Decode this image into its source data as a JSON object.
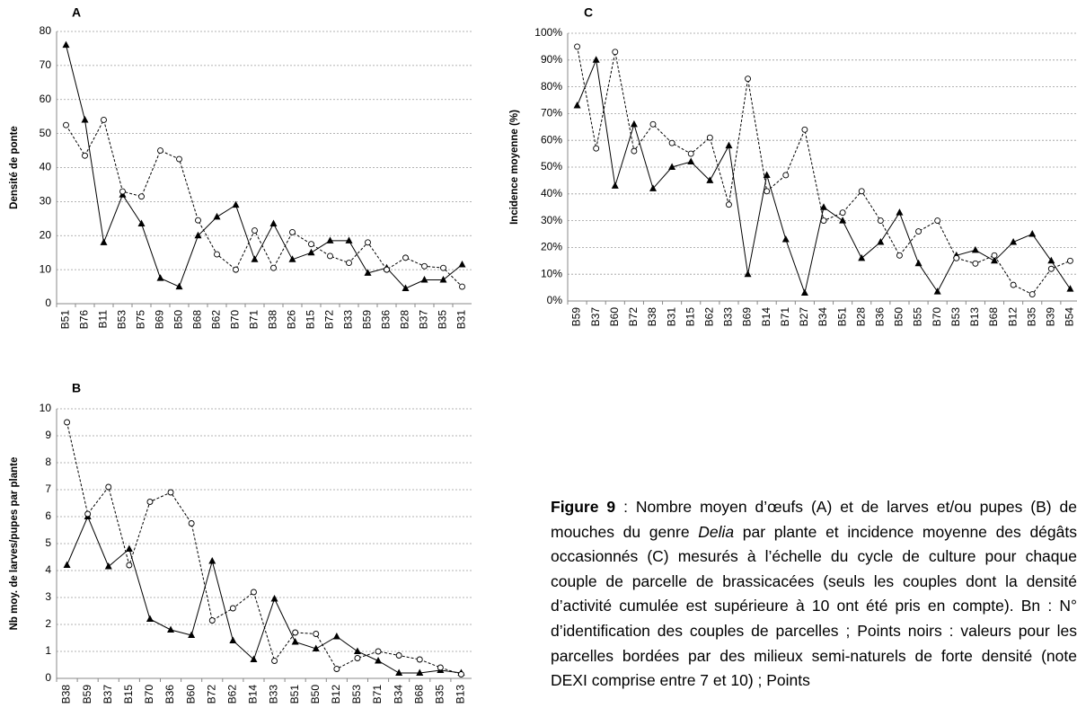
{
  "chart_data": [
    {
      "type": "line",
      "panel": "A",
      "ylabel": "Densité de ponte",
      "categories": [
        "B51",
        "B76",
        "B11",
        "B53",
        "B75",
        "B69",
        "B50",
        "B68",
        "B62",
        "B70",
        "B71",
        "B38",
        "B26",
        "B15",
        "B72",
        "B33",
        "B59",
        "B36",
        "B28",
        "B37",
        "B35",
        "B31"
      ],
      "series": [
        {
          "color": "#000000",
          "marker": "triangle",
          "dashed": false,
          "values": [
            76,
            54,
            18,
            32,
            23.5,
            7.5,
            5,
            20,
            25.5,
            29,
            13,
            23.5,
            13,
            15,
            18.5,
            18.5,
            9,
            10.5,
            4.5,
            7,
            7,
            11.5
          ]
        },
        {
          "color": "#000000",
          "marker": "circle",
          "dashed": true,
          "values": [
            52.5,
            43.5,
            54,
            33,
            31.5,
            45,
            42.5,
            24.5,
            14.5,
            10,
            21.5,
            10.5,
            21,
            17.5,
            14,
            12,
            18,
            10,
            13.5,
            11,
            10.5,
            5
          ]
        }
      ],
      "ylim": [
        0,
        80
      ],
      "yticks": [
        0,
        10,
        20,
        30,
        40,
        50,
        60,
        70,
        80
      ],
      "grid": true
    },
    {
      "type": "line",
      "panel": "C",
      "ylabel": "Incidence moyenne (%)",
      "categories": [
        "B59",
        "B37",
        "B60",
        "B72",
        "B38",
        "B31",
        "B15",
        "B62",
        "B33",
        "B69",
        "B14",
        "B71",
        "B27",
        "B34",
        "B51",
        "B28",
        "B36",
        "B50",
        "B55",
        "B70",
        "B53",
        "B13",
        "B68",
        "B12",
        "B35",
        "B39",
        "B54"
      ],
      "series": [
        {
          "color": "#000000",
          "marker": "triangle",
          "dashed": false,
          "values": [
            73,
            90,
            43,
            66,
            42,
            50,
            52,
            45,
            58,
            10,
            47,
            23,
            3,
            35,
            30,
            16,
            22,
            33,
            14,
            3.5,
            17,
            19,
            15,
            22,
            25,
            15,
            4.5
          ]
        },
        {
          "color": "#000000",
          "marker": "circle",
          "dashed": true,
          "values": [
            95,
            57,
            93,
            56,
            66,
            59,
            55,
            61,
            36,
            83,
            41,
            47,
            64,
            30,
            33,
            41,
            30,
            17,
            26,
            30,
            16,
            14,
            17,
            6,
            2.5,
            12,
            15
          ]
        }
      ],
      "ylim": [
        0,
        100
      ],
      "yticks": [
        {
          "value": 0,
          "label": "0%"
        },
        {
          "value": 10,
          "label": "10%"
        },
        {
          "value": 20,
          "label": "20%"
        },
        {
          "value": 30,
          "label": "30%"
        },
        {
          "value": 40,
          "label": "40%"
        },
        {
          "value": 50,
          "label": "50%"
        },
        {
          "value": 60,
          "label": "60%"
        },
        {
          "value": 70,
          "label": "70%"
        },
        {
          "value": 80,
          "label": "80%"
        },
        {
          "value": 90,
          "label": "90%"
        },
        {
          "value": 100,
          "label": "100%"
        }
      ],
      "grid": true
    },
    {
      "type": "line",
      "panel": "B",
      "ylabel": "Nb moy. de larves/pupes par plante",
      "categories": [
        "B38",
        "B59",
        "B37",
        "B15",
        "B70",
        "B36",
        "B60",
        "B72",
        "B62",
        "B14",
        "B33",
        "B51",
        "B50",
        "B12",
        "B53",
        "B71",
        "B34",
        "B68",
        "B35",
        "B13"
      ],
      "series": [
        {
          "color": "#000000",
          "marker": "triangle",
          "dashed": false,
          "values": [
            4.2,
            6,
            4.15,
            4.8,
            2.2,
            1.8,
            1.6,
            4.35,
            1.4,
            0.7,
            2.95,
            1.35,
            1.1,
            1.55,
            1.0,
            0.65,
            0.2,
            0.2,
            0.3,
            0.2
          ]
        },
        {
          "color": "#000000",
          "marker": "circle",
          "dashed": true,
          "values": [
            9.5,
            6.1,
            7.1,
            4.2,
            6.55,
            6.9,
            5.75,
            2.15,
            2.6,
            3.2,
            0.65,
            1.7,
            1.65,
            0.35,
            0.75,
            1.0,
            0.85,
            0.7,
            0.4,
            0.15
          ]
        }
      ],
      "ylim": [
        0,
        10
      ],
      "yticks": [
        0,
        1,
        2,
        3,
        4,
        5,
        6,
        7,
        8,
        9,
        10
      ],
      "grid": true
    }
  ],
  "caption": [
    "Figure 9",
    " : Nombre moyen d’œufs (A) et de larves et/ou pupes (B) de mouches du genre ",
    "Delia",
    " par plante et incidence moyenne des dégâts occasionnés (C) mesurés à l’échelle du cycle de culture pour chaque couple de parcelle de brassicacées (seuls les couples dont la densité d’activité cumulée est supérieure à 10 ont été pris en compte). Bn : N° d’identification des couples de parcelles ; Points noirs : valeurs pour les parcelles bordées par des milieux semi-naturels de forte densité (note DEXI comprise entre 7 et 10) ; Points"
  ]
}
